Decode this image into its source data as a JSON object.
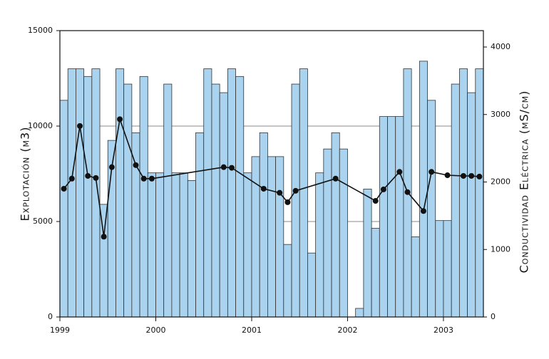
{
  "chart_data": {
    "type": "bar_line",
    "y_label": "Explotación (m3)",
    "y2_label": "Conductividad Eléctrica (µS/cm)",
    "categories": [
      "1999",
      null,
      null,
      null,
      null,
      null,
      null,
      null,
      null,
      null,
      null,
      null,
      "2000",
      null,
      null,
      null,
      null,
      null,
      null,
      null,
      null,
      null,
      null,
      null,
      "2001",
      null,
      null,
      null,
      null,
      null,
      null,
      null,
      null,
      null,
      null,
      null,
      "2002",
      null,
      null,
      null,
      null,
      null,
      null,
      null,
      null,
      null,
      null,
      null,
      "2003",
      null,
      null,
      null,
      null
    ],
    "series": [
      {
        "name": "Explotación",
        "type": "bar",
        "color": "#a9d3ef",
        "values": [
          11350,
          13000,
          13000,
          12600,
          13000,
          5900,
          9250,
          13000,
          12200,
          9650,
          12600,
          7550,
          7550,
          12200,
          7550,
          7550,
          7150,
          9650,
          13000,
          12200,
          11750,
          13000,
          12600,
          7550,
          8400,
          9650,
          8400,
          8400,
          3800,
          12200,
          13000,
          3350,
          7550,
          8800,
          9650,
          8800,
          0,
          450,
          6700,
          4650,
          10500,
          10500,
          10500,
          13000,
          4200,
          13400,
          11350,
          5050,
          5050,
          12200,
          13000,
          11750,
          13000
        ]
      },
      {
        "name": "Conductividad",
        "type": "line",
        "axis": "y2",
        "color": "#111111",
        "values": [
          1900,
          2050,
          2830,
          2090,
          2060,
          1190,
          2220,
          2930,
          null,
          2250,
          2050,
          2050,
          null,
          null,
          null,
          null,
          null,
          null,
          null,
          null,
          2220,
          2210,
          null,
          null,
          null,
          1900,
          null,
          1840,
          1700,
          1870,
          null,
          null,
          null,
          null,
          2050,
          null,
          null,
          null,
          null,
          1720,
          1890,
          null,
          2150,
          1850,
          null,
          1570,
          2150,
          null,
          2100,
          null,
          2090,
          2090,
          2080
        ]
      }
    ],
    "ylim": [
      0,
      15000
    ],
    "yticks": [
      0,
      5000,
      10000,
      15000
    ],
    "y2lim": [
      0,
      4000
    ],
    "y2ticks": [
      0,
      1000,
      2000,
      3000,
      4000
    ],
    "grid": true
  }
}
